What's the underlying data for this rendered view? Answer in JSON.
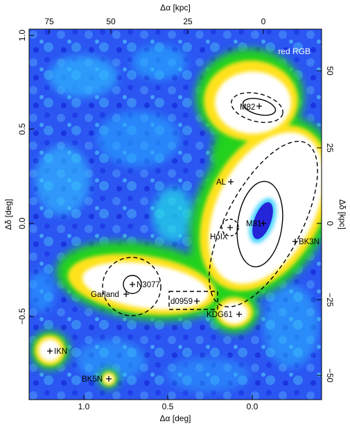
{
  "map": {
    "panel_label": "red RGB",
    "colors": {
      "background_low": "#1f4df5",
      "background_mid": "#00d8ff",
      "green": "#22d21a",
      "yellow": "#ffe21a",
      "core": "#ffffff",
      "deep": "#2020d0"
    },
    "axes": {
      "bottom": {
        "title": "Δα [deg]",
        "ticks": [
          "1.0",
          "0.5",
          "0.0"
        ]
      },
      "top": {
        "title": "Δα [kpc]",
        "ticks": [
          "75",
          "50",
          "25",
          "0"
        ]
      },
      "left": {
        "title": "Δδ [deg]",
        "ticks": [
          "1.0",
          "0.5",
          "0.0",
          "−0.5"
        ]
      },
      "right": {
        "title": "Δδ [kpc]",
        "ticks": [
          "50",
          "25",
          "0",
          "−25",
          "−50"
        ]
      }
    },
    "objects": [
      {
        "id": "m82",
        "label": "M82"
      },
      {
        "id": "al",
        "label": "AL"
      },
      {
        "id": "m81",
        "label": "M81"
      },
      {
        "id": "holx",
        "label": "HoIX"
      },
      {
        "id": "bk3n",
        "label": "BK3N"
      },
      {
        "id": "n3077",
        "label": "N3077"
      },
      {
        "id": "garland",
        "label": "Garland"
      },
      {
        "id": "d0959",
        "label": "d0959"
      },
      {
        "id": "kdg61",
        "label": "KDG61"
      },
      {
        "id": "ikn",
        "label": "IKN"
      },
      {
        "id": "bk5n",
        "label": "BK5N"
      }
    ]
  }
}
